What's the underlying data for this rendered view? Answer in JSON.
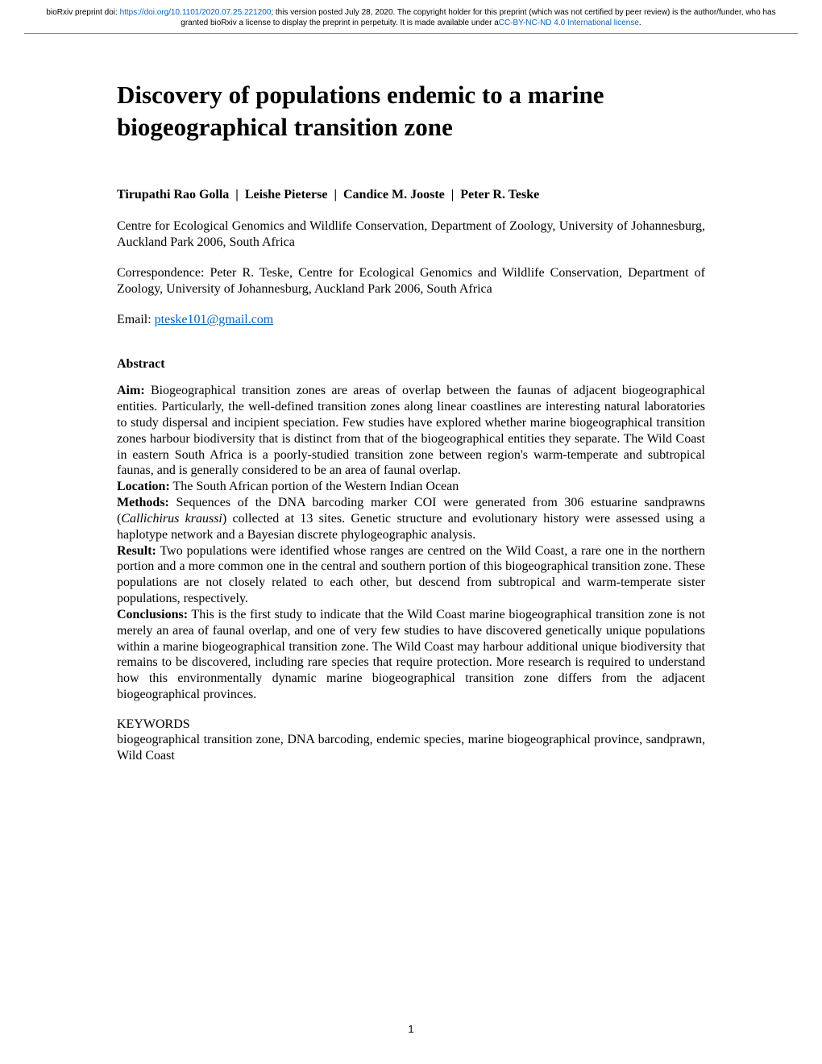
{
  "banner": {
    "prefix": "bioRxiv preprint doi: ",
    "doi_url": "https://doi.org/10.1101/2020.07.25.221200",
    "middle": "; this version posted July 28, 2020. The copyright holder for this preprint (which was not certified by peer review) is the author/funder, who has granted bioRxiv a license to display the preprint in perpetuity. It is made available under a",
    "license_text": "CC-BY-NC-ND 4.0 International license",
    "suffix": "."
  },
  "title": "Discovery of populations endemic to a marine biogeographical transition zone",
  "authors": {
    "a1": "Tirupathi Rao Golla",
    "a2": "Leishe Pieterse",
    "a3": "Candice M. Jooste",
    "a4": "Peter R. Teske",
    "sep": "  |  "
  },
  "affiliation": "Centre for Ecological Genomics and Wildlife Conservation, Department of Zoology, University of Johannesburg, Auckland Park 2006, South Africa",
  "correspondence": "Correspondence: Peter R. Teske, Centre for Ecological Genomics and Wildlife Conservation, Department of Zoology, University of Johannesburg, Auckland Park 2006, South Africa",
  "email": {
    "label": "Email: ",
    "address": "pteske101@gmail.com"
  },
  "abstract": {
    "heading": "Abstract",
    "aim_label": "Aim:",
    "aim_text": " Biogeographical transition zones are areas of overlap between the faunas of adjacent biogeographical entities. Particularly, the well-defined transition zones along linear coastlines are interesting natural laboratories to study dispersal and incipient speciation. Few studies have explored whether marine biogeographical transition zones harbour biodiversity that is distinct from that of the biogeographical entities they separate. The Wild Coast in eastern South Africa is a poorly-studied transition zone between region's warm-temperate and subtropical faunas, and is generally considered to be an area of faunal overlap.",
    "location_label": "Location:",
    "location_text": " The South African portion of the Western Indian Ocean",
    "methods_label": "Methods:",
    "methods_text_pre": " Sequences of the DNA barcoding marker COI were generated from 306 estuarine sandprawns (",
    "methods_species": "Callichirus kraussi",
    "methods_text_post": ") collected at 13 sites. Genetic structure and evolutionary history were assessed using a haplotype network and a Bayesian discrete phylogeographic analysis.",
    "result_label": "Result:",
    "result_text": " Two populations were identified whose ranges are centred on the Wild Coast, a rare one in the northern portion and a more common one in the central and southern portion of this biogeographical transition zone. These populations are not closely related to each other, but descend from subtropical and warm-temperate sister populations, respectively.",
    "conclusions_label": "Conclusions:",
    "conclusions_text": " This is the first study to indicate that the Wild Coast marine biogeographical transition zone is not merely an area of faunal overlap, and one of very few studies to have discovered genetically unique populations within a marine biogeographical transition zone. The Wild Coast may harbour additional unique biodiversity that remains to be discovered, including rare species that require protection. More research is required to understand how this environmentally dynamic marine biogeographical transition zone differs from the adjacent biogeographical provinces."
  },
  "keywords": {
    "heading": "KEYWORDS",
    "body": "biogeographical transition zone, DNA barcoding, endemic species, marine biogeographical province, sandprawn, Wild Coast"
  },
  "page_number": "1"
}
